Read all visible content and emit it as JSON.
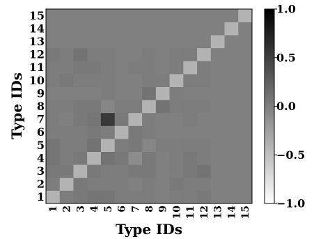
{
  "chart_data": {
    "type": "heatmap",
    "xlabel": "Type IDs",
    "ylabel": "Type IDs",
    "x_categories": [
      "1",
      "2",
      "3",
      "4",
      "5",
      "6",
      "7",
      "8",
      "9",
      "10",
      "11",
      "12",
      "13",
      "14",
      "15"
    ],
    "y_categories": [
      "1",
      "2",
      "3",
      "4",
      "5",
      "6",
      "7",
      "8",
      "9",
      "10",
      "11",
      "12",
      "13",
      "14",
      "15"
    ],
    "colorbar": {
      "range": [
        -1.0,
        1.0
      ],
      "ticks": [
        "1.0",
        "0.5",
        "0.0",
        "−0.5",
        "−1.0"
      ],
      "tick_values": [
        1.0,
        0.5,
        0.0,
        -0.5,
        -1.0
      ]
    },
    "colormap": "white-to-black",
    "values": [
      [
        -0.4,
        0.02,
        0.05,
        0.08,
        0.08,
        0.02,
        0.02,
        0.02,
        0.0,
        0.02,
        0.02,
        0.05,
        0.0,
        0.0,
        0.0
      ],
      [
        0.02,
        -0.4,
        0.05,
        0.02,
        0.02,
        0.02,
        0.0,
        0.02,
        0.0,
        0.05,
        0.02,
        0.02,
        0.0,
        0.0,
        0.0
      ],
      [
        0.05,
        0.05,
        -0.4,
        0.05,
        0.02,
        0.02,
        0.05,
        0.05,
        0.0,
        0.02,
        0.05,
        0.1,
        0.0,
        0.0,
        0.0
      ],
      [
        0.08,
        0.02,
        0.05,
        -0.4,
        0.1,
        0.05,
        -0.1,
        0.05,
        0.0,
        0.02,
        0.05,
        0.02,
        0.0,
        0.0,
        0.0
      ],
      [
        0.08,
        0.02,
        0.02,
        0.1,
        -0.4,
        0.02,
        0.05,
        -0.05,
        0.02,
        0.02,
        0.02,
        0.02,
        0.0,
        0.0,
        0.0
      ],
      [
        0.02,
        0.02,
        0.02,
        0.05,
        0.02,
        -0.4,
        0.05,
        0.02,
        0.0,
        0.0,
        0.0,
        0.0,
        0.0,
        0.0,
        0.0
      ],
      [
        0.02,
        0.0,
        0.05,
        0.08,
        0.55,
        0.05,
        -0.4,
        0.02,
        0.0,
        0.0,
        0.02,
        0.0,
        0.0,
        0.0,
        0.0
      ],
      [
        0.02,
        0.02,
        0.05,
        0.05,
        -0.05,
        0.02,
        0.02,
        -0.4,
        0.1,
        0.02,
        0.02,
        0.02,
        0.0,
        0.0,
        0.0
      ],
      [
        0.0,
        0.0,
        0.0,
        0.0,
        0.02,
        0.0,
        0.0,
        0.1,
        -0.4,
        0.02,
        0.0,
        0.0,
        0.0,
        0.0,
        0.0
      ],
      [
        0.02,
        0.05,
        0.02,
        0.02,
        0.02,
        0.0,
        0.0,
        0.02,
        0.02,
        -0.4,
        0.02,
        0.02,
        0.0,
        0.0,
        0.0
      ],
      [
        0.02,
        0.02,
        0.05,
        0.05,
        0.02,
        0.0,
        0.02,
        0.02,
        0.0,
        0.02,
        -0.4,
        0.02,
        0.0,
        0.0,
        0.0
      ],
      [
        0.05,
        0.02,
        0.1,
        0.02,
        0.02,
        0.0,
        0.0,
        0.02,
        0.0,
        0.02,
        0.02,
        -0.4,
        0.0,
        0.0,
        0.0
      ],
      [
        0.0,
        0.0,
        0.0,
        0.0,
        0.0,
        0.0,
        0.0,
        0.0,
        0.0,
        0.0,
        0.0,
        0.0,
        -0.4,
        0.0,
        0.0
      ],
      [
        0.0,
        0.0,
        0.0,
        0.0,
        0.0,
        0.0,
        0.0,
        0.0,
        0.0,
        0.0,
        0.0,
        0.0,
        0.0,
        -0.4,
        0.0
      ],
      [
        0.0,
        0.0,
        0.0,
        0.0,
        0.0,
        0.0,
        0.0,
        0.0,
        0.0,
        0.0,
        0.0,
        0.0,
        0.0,
        0.0,
        -0.4
      ]
    ]
  }
}
